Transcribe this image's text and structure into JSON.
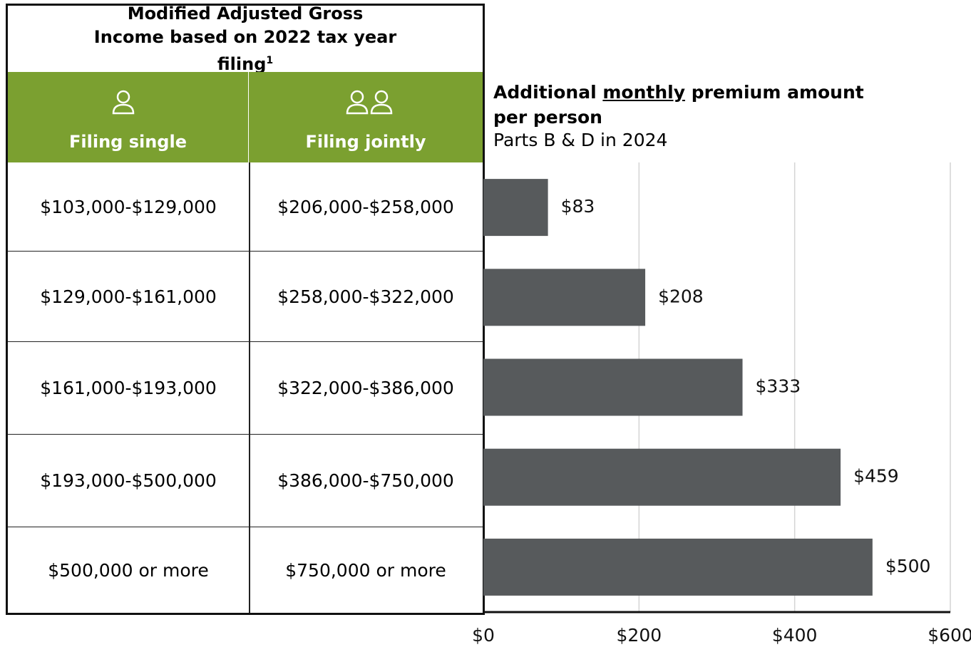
{
  "table": {
    "title": "Modified Adjusted Gross Income based on 2022 tax year filing",
    "title_note": "1",
    "columns": [
      "Filing single",
      "Filing jointly"
    ],
    "rows": [
      [
        "$103,000-$129,000",
        "$206,000-$258,000"
      ],
      [
        "$129,000-$161,000",
        "$258,000-$322,000"
      ],
      [
        "$161,000-$193,000",
        "$322,000-$386,000"
      ],
      [
        "$193,000-$500,000",
        "$386,000-$750,000"
      ],
      [
        "$500,000 or more",
        "$750,000 or more"
      ]
    ]
  },
  "chart_data": {
    "type": "barh",
    "title": [
      "Additional",
      "monthly",
      "premium amount per person"
    ],
    "subtitle": "Parts B & D in 2024",
    "values": [
      83,
      208,
      333,
      459,
      500
    ],
    "value_labels": [
      "$83",
      "$208",
      "$333",
      "$459",
      "$500"
    ],
    "color": "#575a5c",
    "xlim": [
      0,
      600
    ],
    "xticks": [
      {
        "value": 0,
        "label": "$0"
      },
      {
        "value": 200,
        "label": "$200"
      },
      {
        "value": 400,
        "label": "$400"
      },
      {
        "value": 600,
        "label": "$600"
      }
    ],
    "grid": true
  }
}
